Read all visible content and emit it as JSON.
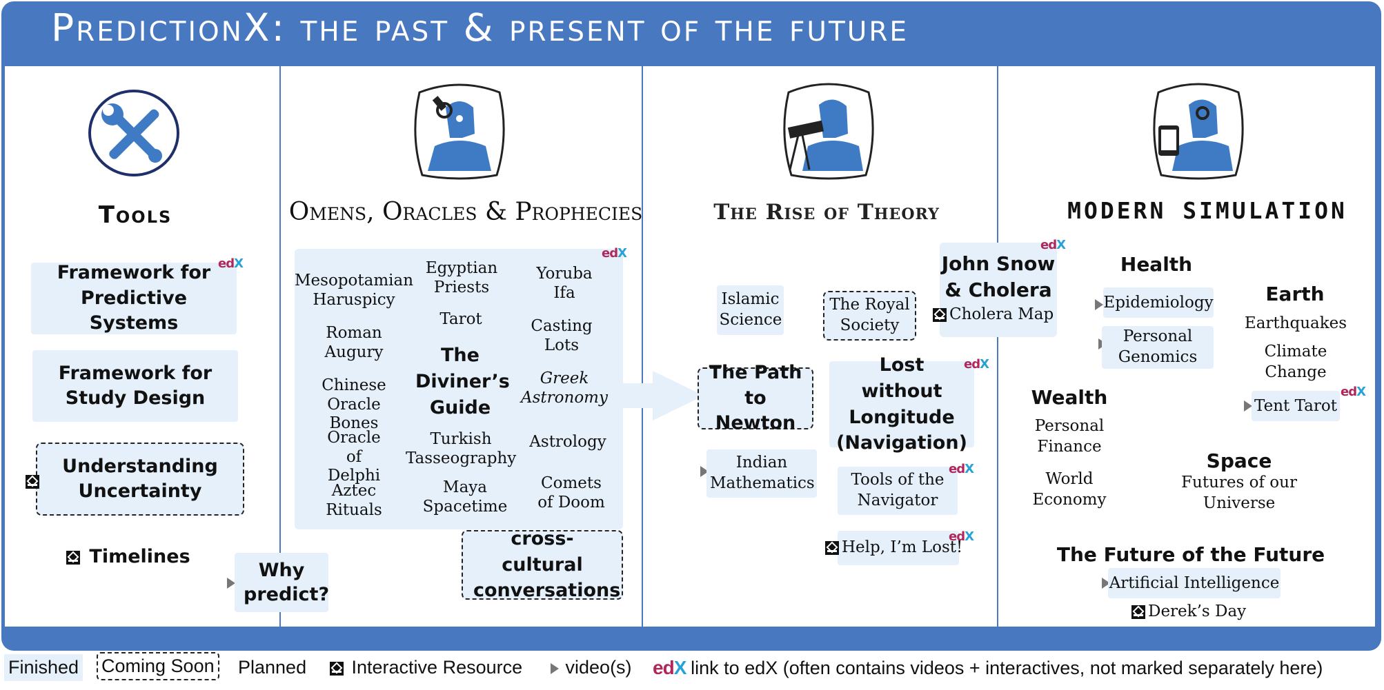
{
  "title": "PredictionX: the past & present of the future",
  "columns": {
    "tools": {
      "heading": "Tools",
      "framework_predictive": "Framework for Predictive Systems",
      "framework_study": "Framework for Study Design",
      "understanding_uncertainty": "Understanding Uncertainty",
      "timelines": "Timelines",
      "why_predict": "Why predict?"
    },
    "omens": {
      "heading": "Omens, Oracles & Prophecies",
      "items": {
        "mesopotamian": "Mesopotamian Haruspicy",
        "egyptian": "Egyptian Priests",
        "yoruba": "Yoruba Ifa",
        "tarot": "Tarot",
        "roman": "Roman Augury",
        "casting": "Casting Lots",
        "diviners_guide": "The Diviner’s Guide",
        "chinese": "Chinese Oracle Bones",
        "greek": "Greek Astronomy",
        "delphi": "Oracle of Delphi",
        "turkish": "Turkish Tasseography",
        "astrology": "Astrology",
        "aztec": "Aztec Rituals",
        "maya": "Maya Spacetime",
        "comets": "Comets of Doom"
      },
      "cross_cultural": "cross-cultural conversations"
    },
    "theory": {
      "heading": "The Rise of Theory",
      "islamic": "Islamic Science",
      "royal_society": "The Royal Society",
      "john_snow": "John Snow & Cholera",
      "cholera_map": "Cholera Map",
      "path_newton": "The Path to Newton",
      "lost_longitude": "Lost without Longitude (Navigation)",
      "indian_math": "Indian Mathematics",
      "tools_navigator": "Tools of the Navigator",
      "help_lost": "Help, I’m Lost!"
    },
    "modern": {
      "heading": "Modern Simulation",
      "health": "Health",
      "epidemiology": "Epidemiology",
      "genomics": "Personal Genomics",
      "earth": "Earth",
      "earthquakes": "Earthquakes",
      "climate": "Climate Change",
      "tent_tarot": "Tent Tarot",
      "wealth": "Wealth",
      "personal_finance": "Personal Finance",
      "world_economy": "World Economy",
      "space": "Space",
      "futures_universe": "Futures of our Universe",
      "future_future": "The Future of the Future",
      "ai": "Artificial Intelligence",
      "dereks_day": "Derek’s Day"
    }
  },
  "edx_logo": "edX",
  "legend": {
    "finished": "Finished",
    "coming_soon": "Coming Soon",
    "planned": "Planned",
    "interactive": "Interactive Resource",
    "videos": "video(s)",
    "edx_link": "link to edX (often contains videos + interactives, not marked separately here)"
  },
  "colors": {
    "frame": "#4878bf",
    "box_fill": "#e5f0fb",
    "figure": "#3f7bc4"
  }
}
